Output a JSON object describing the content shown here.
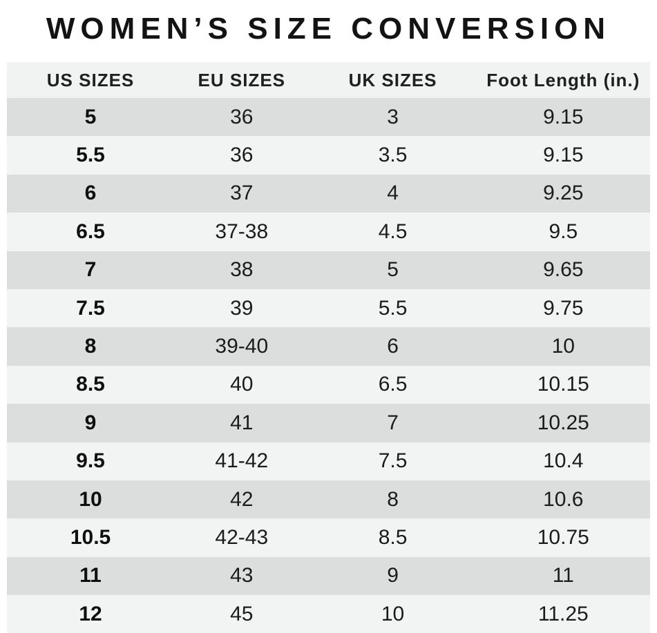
{
  "title": "WOMEN’S SIZE CONVERSION",
  "chart_data": {
    "type": "table",
    "title": "WOMEN’S SIZE CONVERSION",
    "columns": [
      "US SIZES",
      "EU SIZES",
      "UK SIZES",
      "Foot Length (in.)"
    ],
    "column_keys": [
      "us-size",
      "eu-size",
      "uk-size",
      "foot-length"
    ],
    "rows": [
      [
        "5",
        "36",
        "3",
        "9.15"
      ],
      [
        "5.5",
        "36",
        "3.5",
        "9.15"
      ],
      [
        "6",
        "37",
        "4",
        "9.25"
      ],
      [
        "6.5",
        "37-38",
        "4.5",
        "9.5"
      ],
      [
        "7",
        "38",
        "5",
        "9.65"
      ],
      [
        "7.5",
        "39",
        "5.5",
        "9.75"
      ],
      [
        "8",
        "39-40",
        "6",
        "10"
      ],
      [
        "8.5",
        "40",
        "6.5",
        "10.15"
      ],
      [
        "9",
        "41",
        "7",
        "10.25"
      ],
      [
        "9.5",
        "41-42",
        "7.5",
        "10.4"
      ],
      [
        "10",
        "42",
        "8",
        "10.6"
      ],
      [
        "10.5",
        "42-43",
        "8.5",
        "10.75"
      ],
      [
        "11",
        "43",
        "9",
        "11"
      ],
      [
        "12",
        "45",
        "10",
        "11.25"
      ]
    ],
    "layout": {
      "zebra_striping": true,
      "first_data_row_shade": "gray",
      "bold_column": "US SIZES"
    }
  },
  "colors": {
    "row_gray": "#dcdedd",
    "row_light": "#f2f3f3",
    "header_bg": "#f1f2f2",
    "text": "#1b1b1d",
    "background": "#ffffff"
  }
}
